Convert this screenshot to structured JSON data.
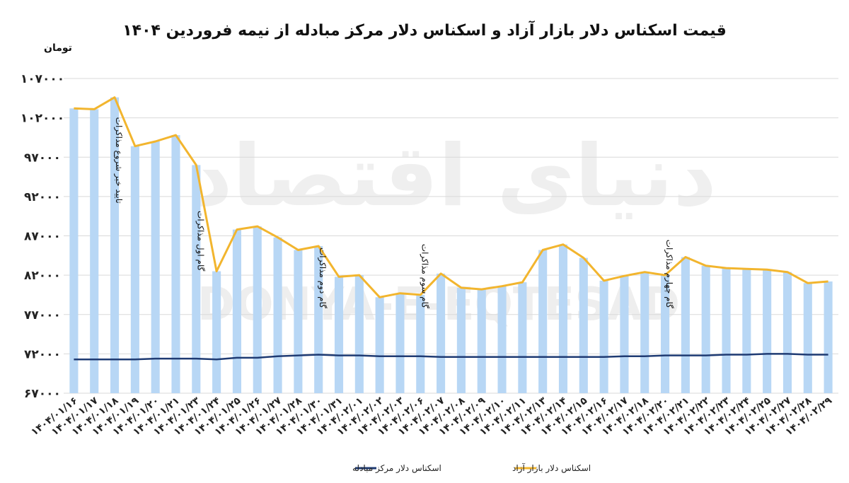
{
  "watermark": {
    "text_fa": "دنیای اقتصاد",
    "text_en": "DONYA-E-EQTESAD"
  },
  "chart_data": {
    "type": "bar",
    "title": "قیمت اسکناس دلار بازار آزاد و اسکناس دلار مرکز مبادله از نیمه فروردین ۱۴۰۴",
    "ylabel": "تومان",
    "ylim": [
      67000,
      107000
    ],
    "yticks": [
      {
        "value": 67000,
        "label": "۶۷۰۰۰"
      },
      {
        "value": 72000,
        "label": "۷۲۰۰۰"
      },
      {
        "value": 77000,
        "label": "۷۷۰۰۰"
      },
      {
        "value": 82000,
        "label": "۸۲۰۰۰"
      },
      {
        "value": 87000,
        "label": "۸۷۰۰۰"
      },
      {
        "value": 92000,
        "label": "۹۲۰۰۰"
      },
      {
        "value": 97000,
        "label": "۹۷۰۰۰"
      },
      {
        "value": 102000,
        "label": "۱۰۲۰۰۰"
      },
      {
        "value": 107000,
        "label": "۱۰۷۰۰۰"
      }
    ],
    "grid": true,
    "legend_position": "bottom",
    "categories": [
      "۱۴۰۴/۰۱/۱۶",
      "۱۴۰۴/۰۱/۱۷",
      "۱۴۰۴/۰۱/۱۸",
      "۱۴۰۴/۰۱/۱۹",
      "۱۴۰۴/۰۱/۲۰",
      "۱۴۰۴/۰۱/۲۱",
      "۱۴۰۴/۰۱/۲۳",
      "۱۴۰۴/۰۱/۲۴",
      "۱۴۰۴/۰۱/۲۵",
      "۱۴۰۴/۰۱/۲۶",
      "۱۴۰۴/۰۱/۲۷",
      "۱۴۰۴/۰۱/۲۸",
      "۱۴۰۴/۰۱/۳۰",
      "۱۴۰۴/۰۱/۳۱",
      "۱۴۰۴/۰۲/۰۱",
      "۱۴۰۴/۰۲/۰۲",
      "۱۴۰۴/۰۲/۰۳",
      "۱۴۰۴/۰۲/۰۶",
      "۱۴۰۴/۰۲/۰۷",
      "۱۴۰۴/۰۲/۰۸",
      "۱۴۰۴/۰۲/۰۹",
      "۱۴۰۴/۰۲/۱۰",
      "۱۴۰۴/۰۲/۱۱",
      "۱۴۰۴/۰۲/۱۳",
      "۱۴۰۴/۰۲/۱۴",
      "۱۴۰۴/۰۲/۱۵",
      "۱۴۰۴/۰۲/۱۶",
      "۱۴۰۴/۰۲/۱۷",
      "۱۴۰۴/۰۲/۱۸",
      "۱۴۰۴/۰۲/۲۰",
      "۱۴۰۴/۰۲/۲۱",
      "۱۴۰۴/۰۲/۲۲",
      "۱۴۰۴/۰۲/۲۳",
      "۱۴۰۴/۰۲/۲۴",
      "۱۴۰۴/۰۲/۲۵",
      "۱۴۰۴/۰۲/۲۷",
      "۱۴۰۴/۰۲/۲۸",
      "۱۴۰۴/۰۲/۲۹"
    ],
    "series": [
      {
        "name": "اسکناس دلار بازار آزاد",
        "kind": "bar+line",
        "bar_color": "#b8d7f5",
        "line_color": "#f2b52e",
        "values": [
          103200,
          103100,
          104600,
          98400,
          99000,
          99800,
          96000,
          82500,
          87800,
          88200,
          86800,
          85200,
          85700,
          81800,
          82000,
          79200,
          79700,
          79500,
          82200,
          80400,
          80200,
          80600,
          81100,
          85200,
          85900,
          84200,
          81300,
          81900,
          82400,
          82000,
          84300,
          83200,
          82900,
          82800,
          82700,
          82400,
          81000,
          81200
        ]
      },
      {
        "name": "اسکناس دلار مرکز مبادله",
        "kind": "line",
        "line_color": "#1f3b73",
        "values": [
          71300,
          71300,
          71300,
          71300,
          71400,
          71400,
          71400,
          71300,
          71500,
          71500,
          71700,
          71800,
          71900,
          71800,
          71800,
          71700,
          71700,
          71700,
          71600,
          71600,
          71600,
          71600,
          71600,
          71600,
          71600,
          71600,
          71600,
          71700,
          71700,
          71800,
          71800,
          71800,
          71900,
          71900,
          72000,
          72000,
          71900,
          71900
        ]
      }
    ],
    "annotations": [
      {
        "category_index": 2,
        "text": "تایید خبر شروع مذاکرات"
      },
      {
        "category_index": 6,
        "text": "گام اول مذاکرات"
      },
      {
        "category_index": 12,
        "text": "گام دوم مذاکرات"
      },
      {
        "category_index": 17,
        "text": "گام سوم مذاکرات"
      },
      {
        "category_index": 29,
        "text": "گام چهارم مذاکرات"
      }
    ]
  }
}
